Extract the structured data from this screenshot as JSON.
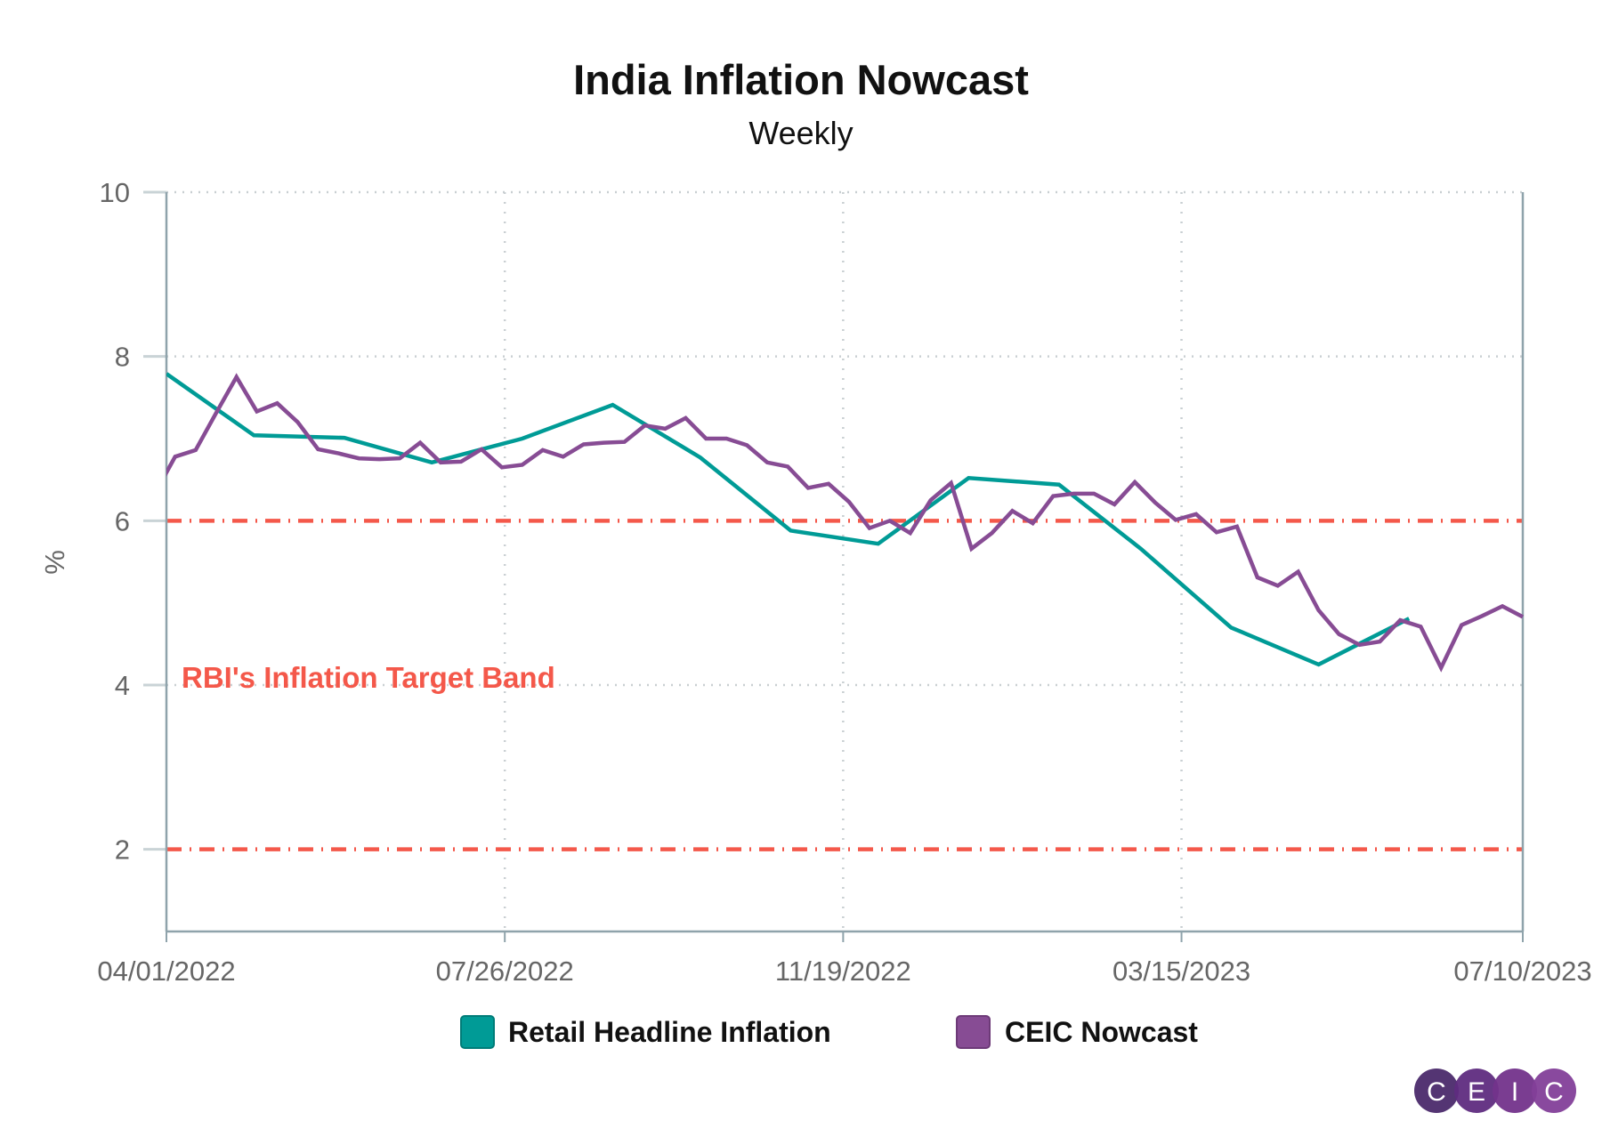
{
  "chart_data": {
    "type": "line",
    "title": "India Inflation Nowcast",
    "subtitle": "Weekly",
    "xlabel": "",
    "ylabel": "%",
    "xlim": [
      "2022-04-01",
      "2023-07-10"
    ],
    "ylim": [
      1,
      10
    ],
    "x_ticks": [
      {
        "date": "2022-04-01",
        "label": "04/01/2022"
      },
      {
        "date": "2022-07-26",
        "label": "07/26/2022"
      },
      {
        "date": "2022-11-19",
        "label": "11/19/2022"
      },
      {
        "date": "2023-03-15",
        "label": "03/15/2023"
      },
      {
        "date": "2023-07-10",
        "label": "07/10/2023"
      }
    ],
    "y_ticks": [
      2,
      4,
      6,
      8,
      10
    ],
    "grid": true,
    "legend_placement": "bottom",
    "reference_lines": [
      {
        "y": 6,
        "color": "#f4584a",
        "style": "dash-dot"
      },
      {
        "y": 2,
        "color": "#f4584a",
        "style": "dash-dot"
      }
    ],
    "annotation": {
      "text": "RBI's Inflation Target Band",
      "color": "#f4584a"
    },
    "series": [
      {
        "name": "Retail Headline Inflation",
        "color": "#009b96",
        "points": [
          [
            "2022-04-01",
            7.79
          ],
          [
            "2022-05-01",
            7.04
          ],
          [
            "2022-06-01",
            7.01
          ],
          [
            "2022-07-01",
            6.71
          ],
          [
            "2022-08-01",
            7.0
          ],
          [
            "2022-09-01",
            7.41
          ],
          [
            "2022-10-01",
            6.77
          ],
          [
            "2022-11-01",
            5.88
          ],
          [
            "2022-12-01",
            5.72
          ],
          [
            "2023-01-01",
            6.52
          ],
          [
            "2023-02-01",
            6.44
          ],
          [
            "2023-03-01",
            5.66
          ],
          [
            "2023-04-01",
            4.7
          ],
          [
            "2023-05-01",
            4.25
          ],
          [
            "2023-06-01",
            4.81
          ]
        ]
      },
      {
        "name": "CEIC Nowcast",
        "color": "#874c94",
        "points": [
          [
            "2022-03-28",
            6.33
          ],
          [
            "2022-04-04",
            6.78
          ],
          [
            "2022-04-11",
            6.86
          ],
          [
            "2022-04-18",
            7.31
          ],
          [
            "2022-04-25",
            7.75
          ],
          [
            "2022-05-02",
            7.33
          ],
          [
            "2022-05-09",
            7.43
          ],
          [
            "2022-05-16",
            7.2
          ],
          [
            "2022-05-23",
            6.87
          ],
          [
            "2022-05-30",
            6.82
          ],
          [
            "2022-06-06",
            6.76
          ],
          [
            "2022-06-13",
            6.75
          ],
          [
            "2022-06-20",
            6.76
          ],
          [
            "2022-06-27",
            6.95
          ],
          [
            "2022-07-04",
            6.71
          ],
          [
            "2022-07-11",
            6.72
          ],
          [
            "2022-07-18",
            6.87
          ],
          [
            "2022-07-25",
            6.65
          ],
          [
            "2022-08-01",
            6.68
          ],
          [
            "2022-08-08",
            6.86
          ],
          [
            "2022-08-15",
            6.78
          ],
          [
            "2022-08-22",
            6.93
          ],
          [
            "2022-08-29",
            6.95
          ],
          [
            "2022-09-05",
            6.96
          ],
          [
            "2022-09-12",
            7.16
          ],
          [
            "2022-09-19",
            7.12
          ],
          [
            "2022-09-26",
            7.25
          ],
          [
            "2022-10-03",
            7.0
          ],
          [
            "2022-10-10",
            7.0
          ],
          [
            "2022-10-17",
            6.92
          ],
          [
            "2022-10-24",
            6.71
          ],
          [
            "2022-10-31",
            6.66
          ],
          [
            "2022-11-07",
            6.4
          ],
          [
            "2022-11-14",
            6.45
          ],
          [
            "2022-11-21",
            6.23
          ],
          [
            "2022-11-28",
            5.91
          ],
          [
            "2022-12-05",
            6.0
          ],
          [
            "2022-12-12",
            5.85
          ],
          [
            "2022-12-19",
            6.25
          ],
          [
            "2022-12-26",
            6.46
          ],
          [
            "2023-01-02",
            5.66
          ],
          [
            "2023-01-09",
            5.85
          ],
          [
            "2023-01-16",
            6.12
          ],
          [
            "2023-01-23",
            5.97
          ],
          [
            "2023-01-30",
            6.3
          ],
          [
            "2023-02-06",
            6.33
          ],
          [
            "2023-02-13",
            6.33
          ],
          [
            "2023-02-20",
            6.2
          ],
          [
            "2023-02-27",
            6.47
          ],
          [
            "2023-03-06",
            6.22
          ],
          [
            "2023-03-13",
            6.01
          ],
          [
            "2023-03-20",
            6.08
          ],
          [
            "2023-03-27",
            5.86
          ],
          [
            "2023-04-03",
            5.93
          ],
          [
            "2023-04-10",
            5.31
          ],
          [
            "2023-04-17",
            5.21
          ],
          [
            "2023-04-24",
            5.38
          ],
          [
            "2023-05-01",
            4.91
          ],
          [
            "2023-05-08",
            4.62
          ],
          [
            "2023-05-15",
            4.49
          ],
          [
            "2023-05-22",
            4.53
          ],
          [
            "2023-05-29",
            4.79
          ],
          [
            "2023-06-05",
            4.71
          ],
          [
            "2023-06-12",
            4.21
          ],
          [
            "2023-06-19",
            4.73
          ],
          [
            "2023-06-26",
            4.84
          ],
          [
            "2023-07-03",
            4.96
          ],
          [
            "2023-07-10",
            4.83
          ]
        ]
      }
    ]
  },
  "logo": {
    "text": "CEIC",
    "letters": [
      "C",
      "E",
      "I",
      "C"
    ],
    "colors": [
      "#4b2a6b",
      "#5f2c7f",
      "#73338b",
      "#833f99"
    ]
  }
}
